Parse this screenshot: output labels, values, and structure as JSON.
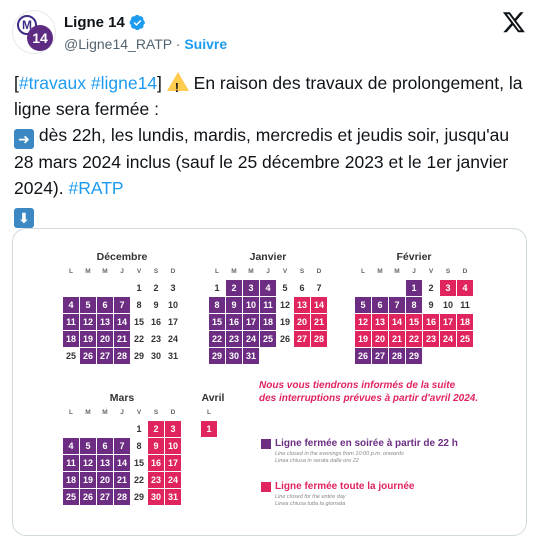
{
  "header": {
    "name": "Ligne 14",
    "handle": "@Ligne14_RATP",
    "separator": "·",
    "follow": "Suivre",
    "avatar_letter": "M",
    "avatar_number": "14"
  },
  "tweet": {
    "l1a": "[",
    "l1b": "#travaux",
    "l1c": " ",
    "l1d": "#ligne14",
    "l1e": "] ",
    "l1f": " En raison des travaux de prolongement, la ligne sera fermée :",
    "l2": " dès 22h, les lundis, mardis, mercredis et jeudis soir, jusqu'au 28 mars 2024 inclus (sauf le 25 décembre 2023 et le 1er janvier 2024). ",
    "tag": "#RATP"
  },
  "calendar": {
    "dow": [
      "L",
      "M",
      "M",
      "J",
      "V",
      "S",
      "D"
    ],
    "months": [
      {
        "name": "Décembre",
        "offset": 4,
        "days": [
          [
            "1",
            ""
          ],
          [
            "2",
            ""
          ],
          [
            "3",
            ""
          ],
          [
            "4",
            "e"
          ],
          [
            "5",
            "e"
          ],
          [
            "6",
            "e"
          ],
          [
            "7",
            "e"
          ],
          [
            "8",
            ""
          ],
          [
            "9",
            ""
          ],
          [
            "10",
            ""
          ],
          [
            "11",
            "e"
          ],
          [
            "12",
            "e"
          ],
          [
            "13",
            "e"
          ],
          [
            "14",
            "e"
          ],
          [
            "15",
            ""
          ],
          [
            "16",
            ""
          ],
          [
            "17",
            ""
          ],
          [
            "18",
            "e"
          ],
          [
            "19",
            "e"
          ],
          [
            "20",
            "e"
          ],
          [
            "21",
            "e"
          ],
          [
            "22",
            ""
          ],
          [
            "23",
            ""
          ],
          [
            "24",
            ""
          ],
          [
            "25",
            ""
          ],
          [
            "26",
            "e"
          ],
          [
            "27",
            "e"
          ],
          [
            "28",
            "e"
          ],
          [
            "29",
            ""
          ],
          [
            "30",
            ""
          ],
          [
            "31",
            ""
          ]
        ]
      },
      {
        "name": "Janvier",
        "offset": 0,
        "days": [
          [
            "1",
            ""
          ],
          [
            "2",
            "e"
          ],
          [
            "3",
            "e"
          ],
          [
            "4",
            "e"
          ],
          [
            "5",
            ""
          ],
          [
            "6",
            ""
          ],
          [
            "7",
            ""
          ],
          [
            "8",
            "e"
          ],
          [
            "9",
            "e"
          ],
          [
            "10",
            "e"
          ],
          [
            "11",
            "e"
          ],
          [
            "12",
            ""
          ],
          [
            "13",
            "f"
          ],
          [
            "14",
            "f"
          ],
          [
            "15",
            "e"
          ],
          [
            "16",
            "e"
          ],
          [
            "17",
            "e"
          ],
          [
            "18",
            "e"
          ],
          [
            "19",
            ""
          ],
          [
            "20",
            "f"
          ],
          [
            "21",
            "f"
          ],
          [
            "22",
            "e"
          ],
          [
            "23",
            "e"
          ],
          [
            "24",
            "e"
          ],
          [
            "25",
            "e"
          ],
          [
            "26",
            ""
          ],
          [
            "27",
            "f"
          ],
          [
            "28",
            "f"
          ],
          [
            "29",
            "e"
          ],
          [
            "30",
            "e"
          ],
          [
            "31",
            "e"
          ]
        ]
      },
      {
        "name": "Février",
        "offset": 3,
        "days": [
          [
            "1",
            "e"
          ],
          [
            "2",
            ""
          ],
          [
            "3",
            "f"
          ],
          [
            "4",
            "f"
          ],
          [
            "5",
            "e"
          ],
          [
            "6",
            "e"
          ],
          [
            "7",
            "e"
          ],
          [
            "8",
            "e"
          ],
          [
            "9",
            ""
          ],
          [
            "10",
            ""
          ],
          [
            "11",
            ""
          ],
          [
            "12",
            "f"
          ],
          [
            "13",
            "f"
          ],
          [
            "14",
            "f"
          ],
          [
            "15",
            "f"
          ],
          [
            "16",
            "f"
          ],
          [
            "17",
            "f"
          ],
          [
            "18",
            "f"
          ],
          [
            "19",
            "f"
          ],
          [
            "20",
            "f"
          ],
          [
            "21",
            "f"
          ],
          [
            "22",
            "f"
          ],
          [
            "23",
            "f"
          ],
          [
            "24",
            "f"
          ],
          [
            "25",
            "f"
          ],
          [
            "26",
            "e"
          ],
          [
            "27",
            "e"
          ],
          [
            "28",
            "e"
          ],
          [
            "29",
            "e"
          ]
        ]
      },
      {
        "name": "Mars",
        "offset": 4,
        "days": [
          [
            "1",
            ""
          ],
          [
            "2",
            "f"
          ],
          [
            "3",
            "f"
          ],
          [
            "4",
            "e"
          ],
          [
            "5",
            "e"
          ],
          [
            "6",
            "e"
          ],
          [
            "7",
            "e"
          ],
          [
            "8",
            ""
          ],
          [
            "9",
            "f"
          ],
          [
            "10",
            "f"
          ],
          [
            "11",
            "e"
          ],
          [
            "12",
            "e"
          ],
          [
            "13",
            "e"
          ],
          [
            "14",
            "e"
          ],
          [
            "15",
            ""
          ],
          [
            "16",
            "f"
          ],
          [
            "17",
            "f"
          ],
          [
            "18",
            "e"
          ],
          [
            "19",
            "e"
          ],
          [
            "20",
            "e"
          ],
          [
            "21",
            "e"
          ],
          [
            "22",
            ""
          ],
          [
            "23",
            "f"
          ],
          [
            "24",
            "f"
          ],
          [
            "25",
            "e"
          ],
          [
            "26",
            "e"
          ],
          [
            "27",
            "e"
          ],
          [
            "28",
            "e"
          ],
          [
            "29",
            ""
          ],
          [
            "30",
            "f"
          ],
          [
            "31",
            "f"
          ]
        ]
      },
      {
        "name": "Avril",
        "offset": 0,
        "days": [
          [
            "1",
            "f"
          ]
        ],
        "dow": [
          "L"
        ]
      }
    ],
    "info_l1": "Nous vous tiendrons informés de la suite",
    "info_l2": "des interruptions prévues à partir d'avril 2024.",
    "legend": [
      {
        "kind": "e",
        "label": "Ligne fermée en soirée à partir de 22 h",
        "sub1": "Line closed in the evenings from 10:00 p.m. onwards",
        "sub2": "Linea chiusa in serata dalle ore 22"
      },
      {
        "kind": "f",
        "label": "Ligne fermée toute la journée",
        "sub1": "Line closed for the entire day",
        "sub2": "Linea chiusa tutta la giornata"
      }
    ]
  },
  "colors": {
    "evening": "#6c2d82",
    "fullday": "#e0245e",
    "link": "#1d9bf0"
  }
}
